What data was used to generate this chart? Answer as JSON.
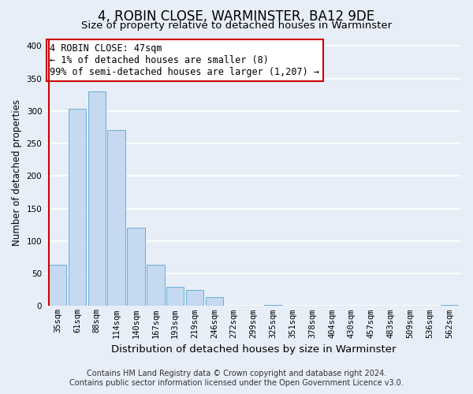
{
  "title": "4, ROBIN CLOSE, WARMINSTER, BA12 9DE",
  "subtitle": "Size of property relative to detached houses in Warminster",
  "xlabel": "Distribution of detached houses by size in Warminster",
  "ylabel": "Number of detached properties",
  "bar_labels": [
    "35sqm",
    "61sqm",
    "88sqm",
    "114sqm",
    "140sqm",
    "167sqm",
    "193sqm",
    "219sqm",
    "246sqm",
    "272sqm",
    "299sqm",
    "325sqm",
    "351sqm",
    "378sqm",
    "404sqm",
    "430sqm",
    "457sqm",
    "483sqm",
    "509sqm",
    "536sqm",
    "562sqm"
  ],
  "bar_values": [
    63,
    303,
    330,
    271,
    120,
    64,
    29,
    25,
    14,
    0,
    0,
    2,
    0,
    0,
    0,
    0,
    0,
    0,
    0,
    0,
    2
  ],
  "bar_color": "#c5d9f0",
  "bar_edge_color": "#6baed6",
  "highlight_bar_index": 0,
  "highlight_edge_color": "#cc0000",
  "annotation_text": "4 ROBIN CLOSE: 47sqm\n← 1% of detached houses are smaller (8)\n99% of semi-detached houses are larger (1,207) →",
  "annotation_box_color": "#ffffff",
  "annotation_box_edge_color": "#cc0000",
  "ylim": [
    0,
    410
  ],
  "yticks": [
    0,
    50,
    100,
    150,
    200,
    250,
    300,
    350,
    400
  ],
  "footer_line1": "Contains HM Land Registry data © Crown copyright and database right 2024.",
  "footer_line2": "Contains public sector information licensed under the Open Government Licence v3.0.",
  "background_color": "#e8eef8",
  "plot_background_color": "#e8eef8",
  "grid_color": "#ffffff",
  "title_fontsize": 12,
  "subtitle_fontsize": 9.5,
  "xlabel_fontsize": 9.5,
  "ylabel_fontsize": 8.5,
  "tick_fontsize": 7.5,
  "annotation_fontsize": 8.5,
  "footer_fontsize": 7
}
